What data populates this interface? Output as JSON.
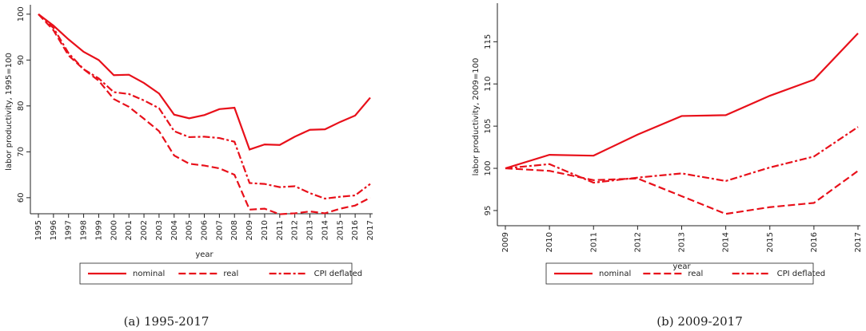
{
  "chart_data": [
    {
      "type": "line",
      "caption": "(a) 1995-2017",
      "ylabel": "labor productivity, 1995=100",
      "xlabel": "year",
      "x": [
        1995,
        1996,
        1997,
        1998,
        1999,
        2000,
        2001,
        2002,
        2003,
        2004,
        2005,
        2006,
        2007,
        2008,
        2009,
        2010,
        2011,
        2012,
        2013,
        2014,
        2015,
        2016,
        2017
      ],
      "xlim": [
        1995,
        2017
      ],
      "xticks": [
        1995,
        1996,
        1997,
        1998,
        1999,
        2000,
        2001,
        2002,
        2003,
        2004,
        2005,
        2006,
        2007,
        2008,
        2009,
        2010,
        2011,
        2012,
        2013,
        2014,
        2015,
        2016,
        2017
      ],
      "ylim": [
        56.5,
        101
      ],
      "yticks": [
        60,
        70,
        80,
        90,
        100
      ],
      "legend": "bottom",
      "series": [
        {
          "name": "nominal",
          "color": "#e8101a",
          "dash": "solid",
          "values": [
            100,
            97.5,
            94.5,
            91.8,
            90,
            86.7,
            86.8,
            85,
            82.7,
            78.1,
            77.3,
            78,
            79.3,
            79.6,
            70.5,
            71.6,
            71.5,
            73.3,
            74.8,
            74.9,
            76.5,
            77.9,
            81.8
          ]
        },
        {
          "name": "real",
          "color": "#e8101a",
          "dash": "dashed",
          "values": [
            100,
            96.5,
            91,
            88,
            85.5,
            81.5,
            79.8,
            77.2,
            74.5,
            69.2,
            67.4,
            67,
            66.4,
            65,
            57.4,
            57.6,
            56.4,
            56.6,
            57,
            56.6,
            57.6,
            58.3,
            60
          ]
        },
        {
          "name": "CPI deflated",
          "color": "#e8101a",
          "dash": "dashdot",
          "values": [
            100,
            97,
            91.5,
            88,
            86,
            83,
            82.6,
            81.2,
            79.5,
            74.5,
            73.2,
            73.3,
            73,
            72.2,
            63.2,
            63,
            62.3,
            62.5,
            61,
            59.8,
            60.2,
            60.5,
            63
          ]
        }
      ]
    },
    {
      "type": "line",
      "caption": "(b) 2009-2017",
      "ylabel": "labor productivity, 2009=100",
      "xlabel": "year",
      "x": [
        2009,
        2010,
        2011,
        2012,
        2013,
        2014,
        2015,
        2016,
        2017
      ],
      "xlim": [
        2009,
        2017
      ],
      "xticks": [
        2009,
        2010,
        2011,
        2012,
        2013,
        2014,
        2015,
        2016,
        2017
      ],
      "ylim": [
        93.2,
        119
      ],
      "yticks": [
        95,
        100,
        105,
        110,
        115
      ],
      "legend": "bottom",
      "series": [
        {
          "name": "nominal",
          "color": "#e8101a",
          "dash": "solid",
          "values": [
            100,
            101.6,
            101.5,
            104,
            106.2,
            106.3,
            108.6,
            110.5,
            116
          ]
        },
        {
          "name": "real",
          "color": "#e8101a",
          "dash": "dashed",
          "values": [
            100,
            99.7,
            98.6,
            98.8,
            96.7,
            94.6,
            95.4,
            95.9,
            99.7
          ]
        },
        {
          "name": "CPI deflated",
          "color": "#e8101a",
          "dash": "dashdot",
          "values": [
            100,
            100.5,
            98.3,
            98.9,
            99.4,
            98.5,
            100.1,
            101.4,
            104.9
          ]
        }
      ]
    }
  ]
}
